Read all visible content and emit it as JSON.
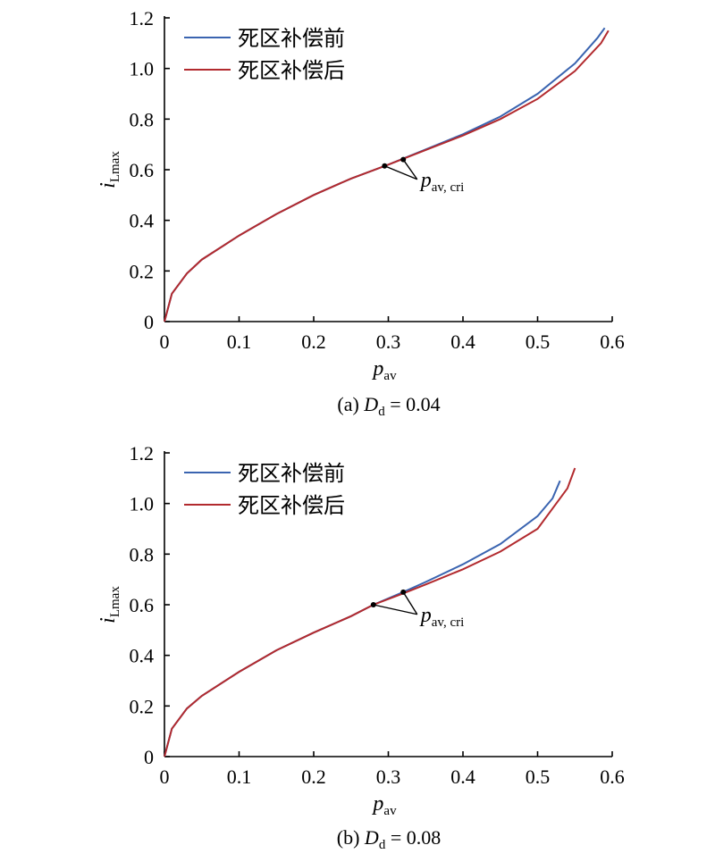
{
  "chart_data": [
    {
      "type": "line",
      "caption_prefix": "(a) ",
      "caption_var": "D",
      "caption_sub": "d",
      "caption_value": " = 0.04",
      "xlabel_main": "p",
      "xlabel_sub": "av",
      "ylabel_main": "i",
      "ylabel_sub": "Lmax",
      "xlim": [
        0,
        0.6
      ],
      "ylim": [
        0,
        1.2
      ],
      "xticks": [
        "0",
        "0.1",
        "0.2",
        "0.3",
        "0.4",
        "0.5",
        "0.6"
      ],
      "yticks": [
        "0",
        "0.2",
        "0.4",
        "0.6",
        "0.8",
        "1.0",
        "1.2"
      ],
      "grid": false,
      "legend_position": "top-left",
      "annotation_main": "p",
      "annotation_sub": "av, cri",
      "series": [
        {
          "name": "死区补偿前",
          "color": "#3a64b0",
          "x": [
            0,
            0.01,
            0.03,
            0.05,
            0.1,
            0.15,
            0.2,
            0.25,
            0.3,
            0.35,
            0.4,
            0.45,
            0.5,
            0.55,
            0.58,
            0.59
          ],
          "y": [
            0,
            0.11,
            0.19,
            0.245,
            0.34,
            0.425,
            0.5,
            0.565,
            0.62,
            0.68,
            0.74,
            0.81,
            0.9,
            1.02,
            1.12,
            1.16
          ],
          "point": [
            0.32,
            0.64
          ]
        },
        {
          "name": "死区补偿后",
          "color": "#b22a2e",
          "x": [
            0,
            0.01,
            0.03,
            0.05,
            0.1,
            0.15,
            0.2,
            0.25,
            0.3,
            0.35,
            0.4,
            0.45,
            0.5,
            0.55,
            0.585,
            0.595
          ],
          "y": [
            0,
            0.11,
            0.19,
            0.245,
            0.34,
            0.425,
            0.5,
            0.565,
            0.62,
            0.678,
            0.735,
            0.8,
            0.88,
            0.99,
            1.1,
            1.15
          ],
          "point": [
            0.295,
            0.615
          ]
        }
      ]
    },
    {
      "type": "line",
      "caption_prefix": "(b) ",
      "caption_var": "D",
      "caption_sub": "d",
      "caption_value": " = 0.08",
      "xlabel_main": "p",
      "xlabel_sub": "av",
      "ylabel_main": "i",
      "ylabel_sub": "Lmax",
      "xlim": [
        0,
        0.6
      ],
      "ylim": [
        0,
        1.2
      ],
      "xticks": [
        "0",
        "0.1",
        "0.2",
        "0.3",
        "0.4",
        "0.5",
        "0.6"
      ],
      "yticks": [
        "0",
        "0.2",
        "0.4",
        "0.6",
        "0.8",
        "1.0",
        "1.2"
      ],
      "grid": false,
      "legend_position": "top-left",
      "annotation_main": "p",
      "annotation_sub": "av, cri",
      "series": [
        {
          "name": "死区补偿前",
          "color": "#3a64b0",
          "x": [
            0,
            0.01,
            0.03,
            0.05,
            0.1,
            0.15,
            0.2,
            0.25,
            0.28,
            0.32,
            0.35,
            0.4,
            0.45,
            0.5,
            0.52,
            0.53
          ],
          "y": [
            0,
            0.11,
            0.19,
            0.24,
            0.335,
            0.42,
            0.49,
            0.555,
            0.6,
            0.65,
            0.69,
            0.76,
            0.84,
            0.95,
            1.02,
            1.09
          ],
          "point": [
            0.32,
            0.65
          ]
        },
        {
          "name": "死区补偿后",
          "color": "#b22a2e",
          "x": [
            0,
            0.01,
            0.03,
            0.05,
            0.1,
            0.15,
            0.2,
            0.25,
            0.28,
            0.32,
            0.35,
            0.4,
            0.45,
            0.5,
            0.54,
            0.55
          ],
          "y": [
            0,
            0.11,
            0.19,
            0.24,
            0.335,
            0.42,
            0.49,
            0.555,
            0.6,
            0.645,
            0.68,
            0.74,
            0.81,
            0.9,
            1.06,
            1.14
          ],
          "point": [
            0.28,
            0.6
          ]
        }
      ]
    }
  ]
}
